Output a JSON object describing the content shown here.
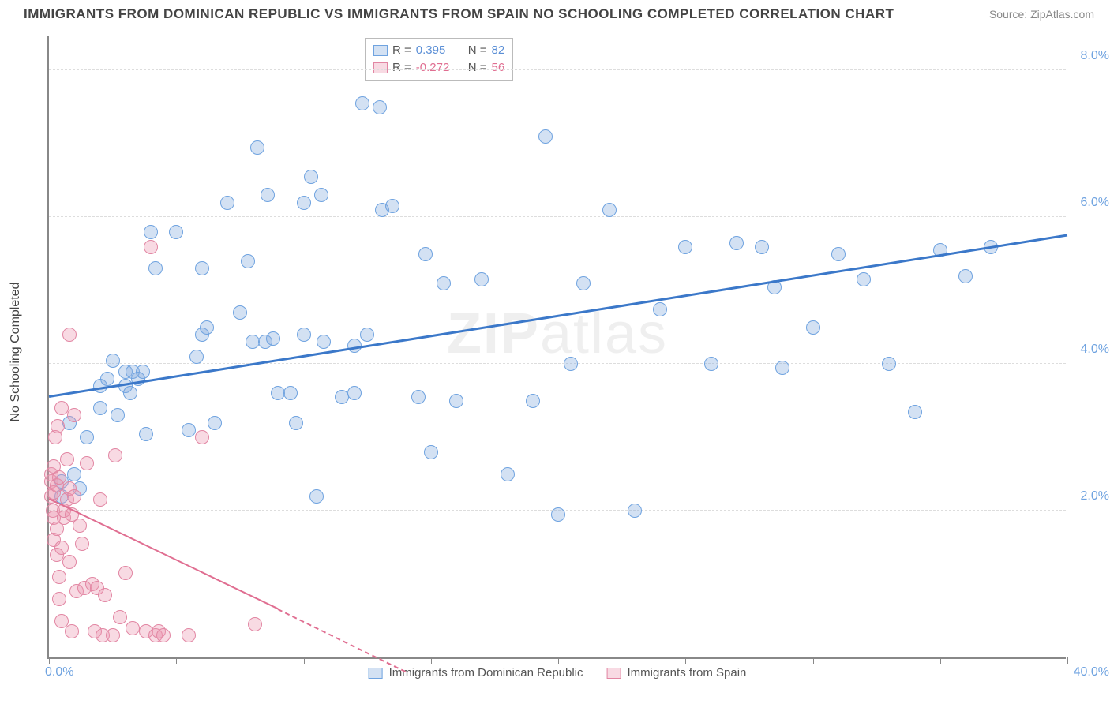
{
  "title": "IMMIGRANTS FROM DOMINICAN REPUBLIC VS IMMIGRANTS FROM SPAIN NO SCHOOLING COMPLETED CORRELATION CHART",
  "source": "Source: ZipAtlas.com",
  "ylabel": "No Schooling Completed",
  "watermark_bold": "ZIP",
  "watermark_thin": "atlas",
  "chart": {
    "type": "scatter",
    "xlim": [
      0,
      40
    ],
    "ylim": [
      0,
      8.5
    ],
    "x_tick_positions": [
      0,
      5,
      10,
      15,
      20,
      25,
      30,
      35,
      40
    ],
    "x_tick_labels_shown": {
      "0": "0.0%",
      "40": "40.0%"
    },
    "y_grid_positions": [
      2,
      4,
      6,
      8
    ],
    "y_tick_labels": {
      "2": "2.0%",
      "4": "4.0%",
      "6": "6.0%",
      "8": "8.0%"
    },
    "background_color": "#ffffff",
    "grid_color": "#dddddd",
    "tick_label_color": "#6fa3e0",
    "point_radius": 9,
    "series": [
      {
        "name": "Immigrants from Dominican Republic",
        "fill": "rgba(130,170,220,0.35)",
        "stroke": "#6fa3e0",
        "label_color": "#5b8fd6",
        "R": "0.395",
        "N": "82",
        "trend": {
          "x1": 0,
          "y1": 3.55,
          "x2": 40,
          "y2": 5.75,
          "color": "#3b78c9",
          "width": 2.5,
          "dash_extend": false
        },
        "points": [
          [
            0.5,
            2.2
          ],
          [
            0.5,
            2.4
          ],
          [
            0.8,
            3.2
          ],
          [
            1,
            2.5
          ],
          [
            1.2,
            2.3
          ],
          [
            1.5,
            3.0
          ],
          [
            2,
            3.7
          ],
          [
            2,
            3.4
          ],
          [
            2.3,
            3.8
          ],
          [
            2.5,
            4.05
          ],
          [
            2.7,
            3.3
          ],
          [
            3,
            3.9
          ],
          [
            3,
            3.7
          ],
          [
            3.2,
            3.6
          ],
          [
            3.3,
            3.9
          ],
          [
            3.5,
            3.8
          ],
          [
            3.7,
            3.9
          ],
          [
            3.8,
            3.05
          ],
          [
            4,
            5.8
          ],
          [
            4.2,
            5.3
          ],
          [
            5,
            5.8
          ],
          [
            5.5,
            3.1
          ],
          [
            5.8,
            4.1
          ],
          [
            6,
            4.4
          ],
          [
            6,
            5.3
          ],
          [
            6.2,
            4.5
          ],
          [
            6.5,
            3.2
          ],
          [
            7,
            6.2
          ],
          [
            7.5,
            4.7
          ],
          [
            7.8,
            5.4
          ],
          [
            8,
            4.3
          ],
          [
            8.2,
            6.95
          ],
          [
            8.5,
            4.3
          ],
          [
            8.6,
            6.3
          ],
          [
            8.8,
            4.35
          ],
          [
            9,
            3.6
          ],
          [
            9.5,
            3.6
          ],
          [
            9.7,
            3.2
          ],
          [
            10,
            4.4
          ],
          [
            10,
            6.2
          ],
          [
            10.3,
            6.55
          ],
          [
            10.5,
            2.2
          ],
          [
            10.7,
            6.3
          ],
          [
            10.8,
            4.3
          ],
          [
            11.5,
            3.55
          ],
          [
            12,
            3.6
          ],
          [
            12,
            4.25
          ],
          [
            12.3,
            7.55
          ],
          [
            12.5,
            4.4
          ],
          [
            13,
            7.5
          ],
          [
            13.1,
            6.1
          ],
          [
            13.5,
            6.15
          ],
          [
            14.5,
            3.55
          ],
          [
            14.8,
            5.5
          ],
          [
            15,
            2.8
          ],
          [
            15.5,
            5.1
          ],
          [
            16,
            3.5
          ],
          [
            17,
            5.15
          ],
          [
            18,
            2.5
          ],
          [
            19,
            3.5
          ],
          [
            19.5,
            7.1
          ],
          [
            20,
            1.95
          ],
          [
            20.5,
            4.0
          ],
          [
            21,
            5.1
          ],
          [
            22,
            6.1
          ],
          [
            23,
            2.0
          ],
          [
            24,
            4.75
          ],
          [
            25,
            5.6
          ],
          [
            26,
            4.0
          ],
          [
            27,
            5.65
          ],
          [
            28,
            5.6
          ],
          [
            28.5,
            5.05
          ],
          [
            28.8,
            3.95
          ],
          [
            30,
            4.5
          ],
          [
            31,
            5.5
          ],
          [
            32,
            5.15
          ],
          [
            33,
            4.0
          ],
          [
            34,
            3.35
          ],
          [
            35,
            5.55
          ],
          [
            36,
            5.2
          ],
          [
            37,
            5.6
          ]
        ]
      },
      {
        "name": "Immigrants from Spain",
        "fill": "rgba(235,150,175,0.35)",
        "stroke": "#e286a3",
        "label_color": "#e06e91",
        "R": "-0.272",
        "N": "56",
        "trend": {
          "x1": 0,
          "y1": 2.15,
          "x2": 9,
          "y2": 0.65,
          "color": "#e06e91",
          "width": 2,
          "dash_extend": true,
          "dash_x2": 14,
          "dash_y2": -0.2
        },
        "points": [
          [
            0.1,
            2.2
          ],
          [
            0.1,
            2.4
          ],
          [
            0.1,
            2.5
          ],
          [
            0.15,
            2.0
          ],
          [
            0.2,
            1.9
          ],
          [
            0.2,
            2.25
          ],
          [
            0.2,
            2.6
          ],
          [
            0.2,
            1.6
          ],
          [
            0.25,
            3.0
          ],
          [
            0.3,
            1.4
          ],
          [
            0.3,
            1.75
          ],
          [
            0.3,
            2.35
          ],
          [
            0.35,
            3.15
          ],
          [
            0.4,
            0.8
          ],
          [
            0.4,
            1.1
          ],
          [
            0.4,
            2.45
          ],
          [
            0.5,
            0.5
          ],
          [
            0.5,
            1.5
          ],
          [
            0.5,
            3.4
          ],
          [
            0.6,
            1.9
          ],
          [
            0.6,
            2.0
          ],
          [
            0.7,
            2.15
          ],
          [
            0.7,
            2.7
          ],
          [
            0.8,
            1.3
          ],
          [
            0.8,
            2.3
          ],
          [
            0.8,
            4.4
          ],
          [
            0.9,
            0.35
          ],
          [
            0.9,
            1.95
          ],
          [
            1.0,
            2.2
          ],
          [
            1.0,
            3.3
          ],
          [
            1.1,
            0.9
          ],
          [
            1.2,
            1.8
          ],
          [
            1.3,
            1.55
          ],
          [
            1.4,
            0.95
          ],
          [
            1.5,
            2.65
          ],
          [
            1.7,
            1.0
          ],
          [
            1.8,
            0.35
          ],
          [
            1.9,
            0.95
          ],
          [
            2.0,
            2.15
          ],
          [
            2.1,
            0.3
          ],
          [
            2.2,
            0.85
          ],
          [
            2.5,
            0.3
          ],
          [
            2.6,
            2.75
          ],
          [
            2.8,
            0.55
          ],
          [
            3.0,
            1.15
          ],
          [
            3.3,
            0.4
          ],
          [
            3.8,
            0.35
          ],
          [
            4.0,
            5.6
          ],
          [
            4.2,
            0.3
          ],
          [
            4.3,
            0.35
          ],
          [
            4.5,
            0.3
          ],
          [
            5.5,
            0.3
          ],
          [
            6.0,
            3.0
          ],
          [
            8.1,
            0.45
          ]
        ]
      }
    ],
    "legend_top": {
      "r_label": "R  =",
      "n_label": "N  ="
    }
  }
}
